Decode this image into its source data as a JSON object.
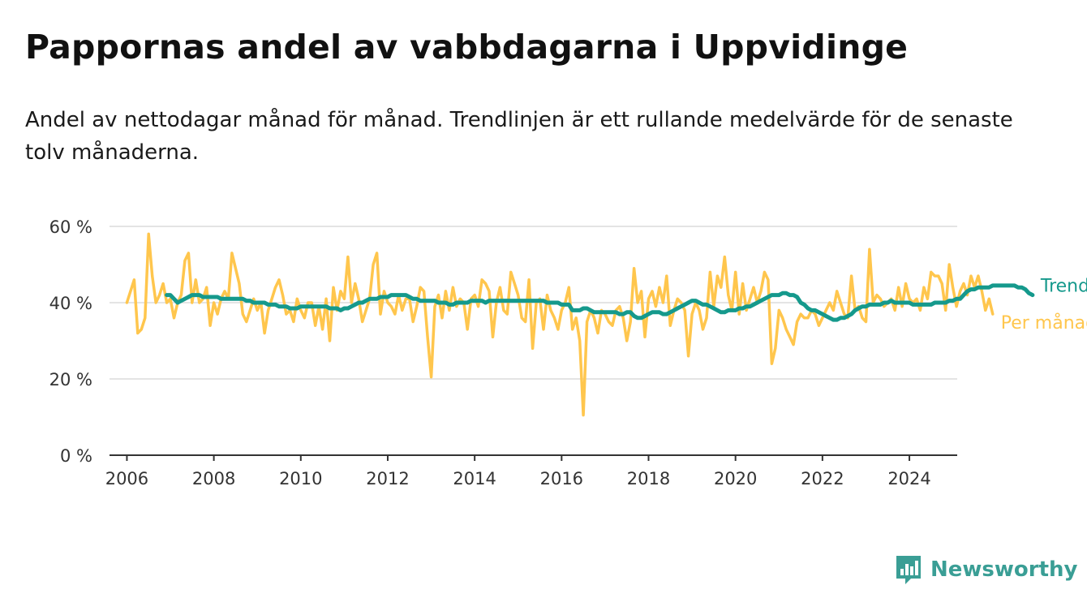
{
  "title": "Pappornas andel av vabbdagarna i Uppvidinge",
  "subtitle": "Andel av nettodagar månad för månad. Trendlinjen är ett rullande medelvärde för de senaste tolv månaderna.",
  "brand": {
    "name": "Newsworthy",
    "icon": "newsworthy-logo-icon",
    "color": "#3a9e95"
  },
  "chart_data": {
    "type": "line",
    "x_axis": {
      "min": 2005.6,
      "max": 2025.1,
      "ticks": [
        2006,
        2008,
        2010,
        2012,
        2014,
        2016,
        2018,
        2020,
        2022,
        2024
      ],
      "tick_labels": [
        "2006",
        "2008",
        "2010",
        "2012",
        "2014",
        "2016",
        "2018",
        "2020",
        "2022",
        "2024"
      ]
    },
    "y_axis": {
      "min": 0,
      "max": 60,
      "ticks": [
        0,
        20,
        40,
        60
      ],
      "tick_labels": [
        "0 %",
        "20 %",
        "40 %",
        "60 %"
      ]
    },
    "grid": "horizontal",
    "series": [
      {
        "name": "Per månad",
        "color": "#ffc64d",
        "start": 2006.0,
        "step": 0.0833333,
        "values": [
          40,
          43,
          46,
          32,
          33,
          36,
          58,
          47,
          40,
          42,
          45,
          40,
          41,
          36,
          40,
          42,
          51,
          53,
          40,
          46,
          40,
          41,
          44,
          34,
          40,
          37,
          41,
          43,
          41,
          53,
          49,
          45,
          37,
          35,
          38,
          41,
          38,
          40,
          32,
          38,
          41,
          44,
          46,
          42,
          37,
          38,
          35,
          41,
          38,
          36,
          40,
          40,
          34,
          39,
          33,
          41,
          30,
          44,
          38,
          43,
          41,
          52,
          40,
          45,
          41,
          35,
          38,
          41,
          50,
          53,
          37,
          43,
          40,
          39,
          37,
          42,
          38,
          41,
          41,
          35,
          39,
          44,
          43,
          31,
          20.5,
          39,
          42,
          36,
          43,
          38,
          44,
          39,
          41,
          40,
          33,
          41,
          42,
          39,
          46,
          45,
          43,
          31,
          40,
          44,
          38,
          37,
          48,
          45,
          42,
          36,
          35,
          46,
          28,
          40,
          41,
          33,
          42,
          38,
          36,
          33,
          38,
          40,
          44,
          33,
          36,
          30,
          10.5,
          35,
          38,
          36,
          32,
          38,
          37,
          35,
          34,
          38,
          39,
          36,
          30,
          35,
          49,
          40,
          43,
          31,
          41,
          43,
          39,
          44,
          40,
          47,
          34,
          38,
          41,
          40,
          38,
          26,
          37,
          40,
          38,
          33,
          36,
          48,
          39,
          47,
          44,
          52,
          42,
          38,
          48,
          37,
          45,
          38,
          41,
          44,
          40,
          43,
          48,
          46,
          24,
          28,
          38,
          36,
          33,
          31,
          29,
          35,
          37,
          36,
          36,
          38,
          37,
          34,
          36,
          38,
          40,
          38,
          43,
          40,
          37,
          36,
          47,
          38,
          39,
          36,
          35,
          54,
          40,
          42,
          41,
          39,
          40,
          41,
          38,
          44,
          39,
          45,
          41,
          40,
          41,
          38,
          44,
          41,
          48,
          47,
          47,
          45,
          38,
          50,
          44,
          39,
          43,
          45,
          42,
          47,
          44,
          47,
          43,
          38,
          41,
          37
        ],
        "end_label": "Per månad"
      },
      {
        "name": "Trend",
        "color": "#15998c",
        "start": 2006.9167,
        "step": 0.0833333,
        "values": [
          42,
          42,
          41,
          40,
          40.5,
          41,
          41.5,
          42,
          42,
          42,
          41.5,
          41.5,
          41.5,
          41.5,
          41.5,
          41,
          41,
          41,
          41,
          41,
          41,
          41,
          40.5,
          40.5,
          40,
          40,
          40,
          40,
          39.5,
          39.5,
          39.5,
          39,
          39,
          39,
          38.5,
          38.5,
          38.5,
          39,
          39,
          39,
          39,
          39,
          39,
          39,
          39,
          38.5,
          38.5,
          38.5,
          38,
          38.5,
          38.5,
          39,
          39.5,
          40,
          40,
          40.5,
          41,
          41,
          41,
          41.5,
          41.5,
          41.5,
          42,
          42,
          42,
          42,
          42,
          41.5,
          41,
          41,
          40.5,
          40.5,
          40.5,
          40.5,
          40.5,
          40,
          40,
          40,
          39.5,
          39.5,
          40,
          40,
          40,
          40,
          40.5,
          40.5,
          40.5,
          40.5,
          40,
          40.5,
          40.5,
          40.5,
          40.5,
          40.5,
          40.5,
          40.5,
          40.5,
          40.5,
          40.5,
          40.5,
          40.5,
          40.5,
          40.5,
          40.5,
          40.5,
          40,
          40,
          40,
          40,
          39.5,
          39.5,
          39.5,
          38,
          38,
          38,
          38.5,
          38.5,
          38,
          37.5,
          37.5,
          37.5,
          37.5,
          37.5,
          37.5,
          37.5,
          37,
          37,
          37.5,
          37.5,
          36.5,
          36,
          36,
          36.5,
          37,
          37.5,
          37.5,
          37.5,
          37,
          37,
          37.5,
          38,
          38.5,
          39,
          39.5,
          40,
          40.5,
          40.5,
          40,
          39.5,
          39.5,
          39,
          38.5,
          38,
          37.5,
          37.5,
          38,
          38,
          38,
          38.5,
          38.5,
          39,
          39,
          39.5,
          40,
          40.5,
          41,
          41.5,
          42,
          42,
          42,
          42.5,
          42.5,
          42,
          42,
          41.5,
          40,
          39.5,
          38.5,
          38,
          38,
          37.5,
          37,
          36.5,
          36,
          35.5,
          35.5,
          36,
          36,
          36.5,
          37,
          38,
          38.5,
          39,
          39,
          39.5,
          39.5,
          39.5,
          39.5,
          40,
          40,
          40.5,
          40,
          40,
          40,
          40,
          40,
          39.5,
          39.5,
          39.5,
          39.5,
          39.5,
          39.5,
          40,
          40,
          40,
          40,
          40.5,
          40.5,
          41,
          41,
          42,
          43,
          43.5,
          43.5,
          44,
          44,
          44,
          44,
          44.5,
          44.5,
          44.5,
          44.5,
          44.5,
          44.5,
          44.5,
          44,
          44,
          43.5,
          42.5,
          42
        ],
        "end_label": "Trend"
      }
    ]
  }
}
